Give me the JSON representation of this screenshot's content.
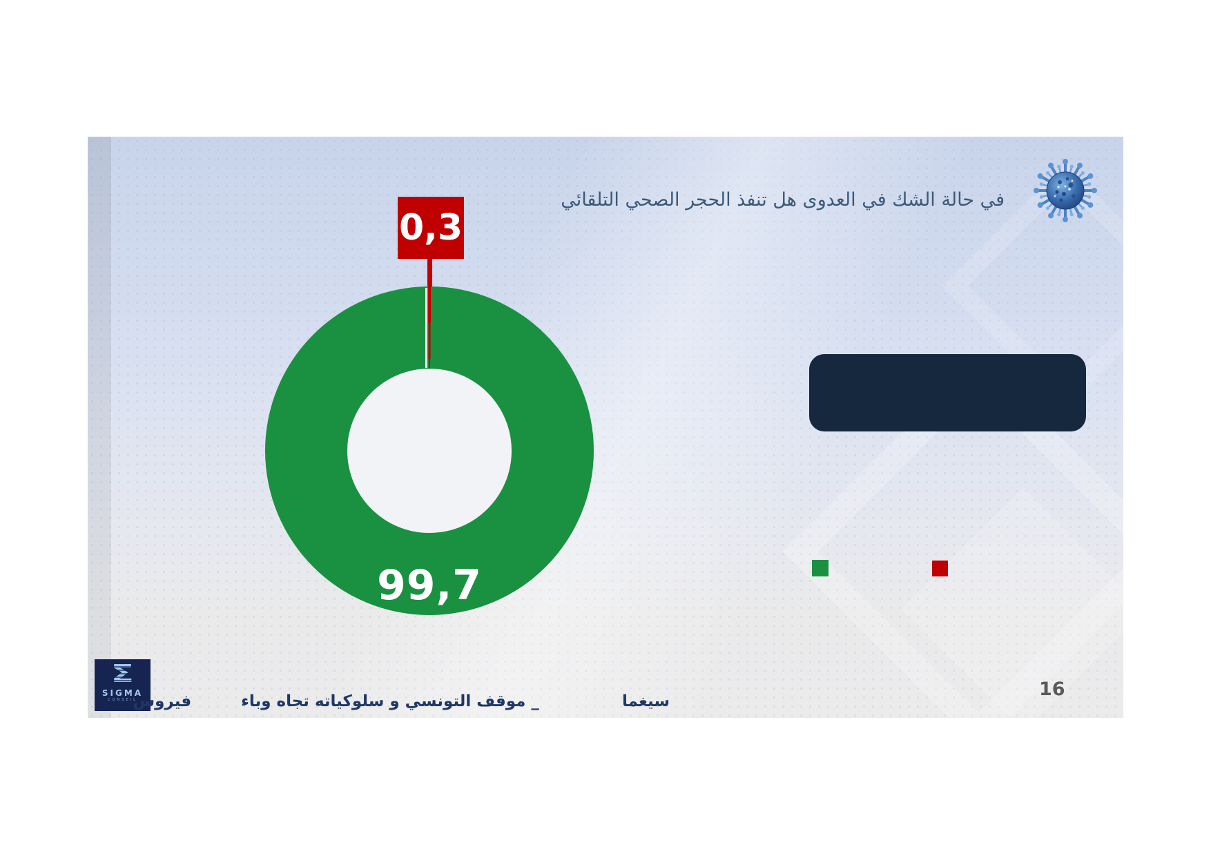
{
  "header": {
    "title": "في حالة الشك في العدوى هل تنفذ الحجر الصحي التلقائي"
  },
  "chart_data": {
    "type": "pie",
    "subtype": "donut",
    "title": "في حالة الشك في العدوى هل تنفذ الحجر الصحي التلقائي",
    "values": [
      99.7,
      0.3
    ],
    "labels": [
      "99,7",
      "0,3"
    ],
    "colors": [
      "#199141",
      "#C00000"
    ],
    "legend": {
      "position": "bottom-right",
      "entries": [
        {
          "color": "#199141",
          "label": ""
        },
        {
          "color": "#C00000",
          "label": ""
        }
      ]
    }
  },
  "info_box": {
    "text": ""
  },
  "footer": {
    "segment_sigma": "سيغما",
    "segment_main": "_ موقف التونسي و سلوكياته تجاه وباء",
    "segment_virus": "فيروس"
  },
  "logo": {
    "symbol": "Σ",
    "name": "SIGMA",
    "subtitle": "CONSEIL"
  },
  "page_number": "16"
}
